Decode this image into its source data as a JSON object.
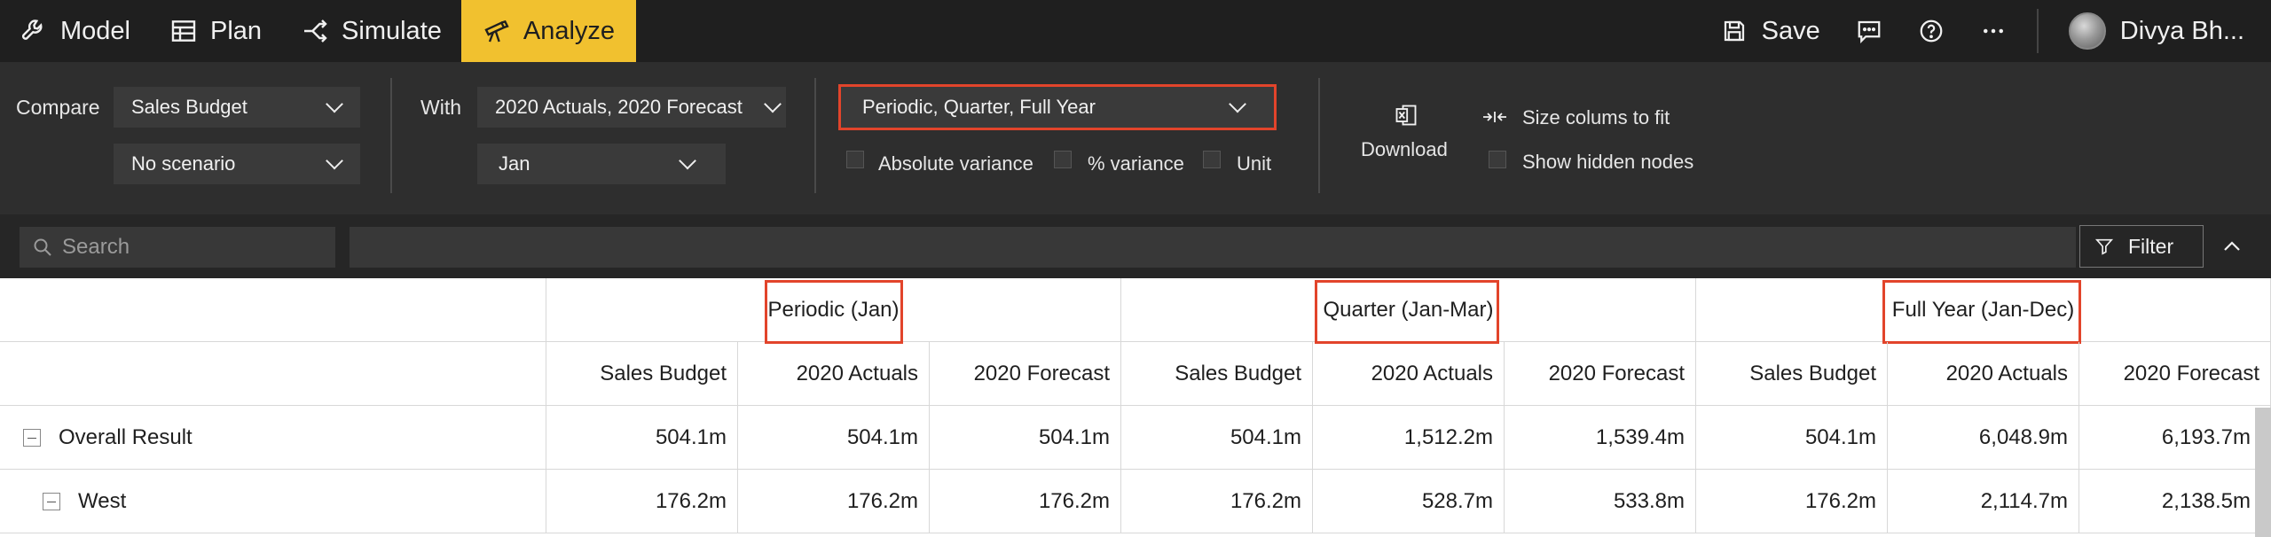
{
  "nav": {
    "items": [
      {
        "label": "Model",
        "icon": "wrench-icon"
      },
      {
        "label": "Plan",
        "icon": "table-icon"
      },
      {
        "label": "Simulate",
        "icon": "branch-icon"
      },
      {
        "label": "Analyze",
        "icon": "telescope-icon",
        "active": true
      }
    ],
    "save_label": "Save",
    "user_name": "Divya Bh..."
  },
  "options": {
    "compare_label": "Compare",
    "compare_value": "Sales Budget",
    "scenario_value": "No scenario",
    "with_label": "With",
    "with_value": "2020 Actuals, 2020 Forecast",
    "month_value": "Jan",
    "period_value": "Periodic, Quarter, Full Year",
    "checks": [
      "Absolute variance",
      "% variance",
      "Unit"
    ],
    "download_label": "Download",
    "size_columns_label": "Size colums to fit",
    "show_hidden_label": "Show hidden nodes"
  },
  "search": {
    "placeholder": "Search",
    "filter_label": "Filter"
  },
  "table": {
    "groups": [
      "Periodic (Jan)",
      "Quarter (Jan-Mar)",
      "Full Year (Jan-Dec)"
    ],
    "columns": [
      "Sales Budget",
      "2020 Actuals",
      "2020 Forecast",
      "Sales Budget",
      "2020 Actuals",
      "2020 Forecast",
      "Sales Budget",
      "2020 Actuals",
      "2020 Forecast"
    ],
    "rows": [
      {
        "label": "Overall Result",
        "values": [
          "504.1m",
          "504.1m",
          "504.1m",
          "504.1m",
          "1,512.2m",
          "1,539.4m",
          "504.1m",
          "6,048.9m",
          "6,193.7m"
        ]
      },
      {
        "label": "West",
        "values": [
          "176.2m",
          "176.2m",
          "176.2m",
          "176.2m",
          "528.7m",
          "533.8m",
          "176.2m",
          "2,114.7m",
          "2,138.5m"
        ]
      }
    ]
  },
  "colors": {
    "accent": "#f1c12f",
    "highlight": "#e2442b"
  }
}
